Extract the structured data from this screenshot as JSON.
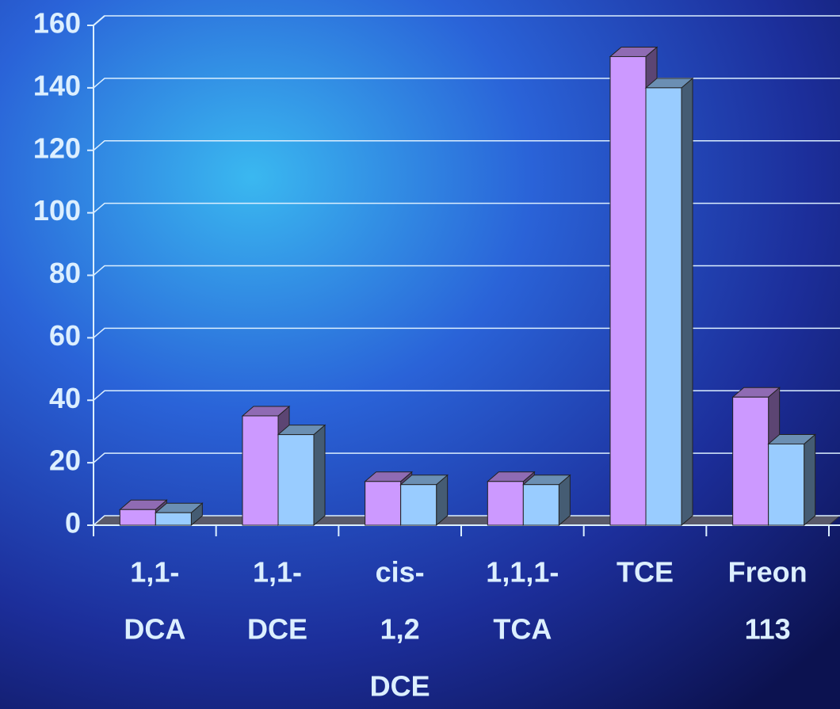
{
  "chart_data": {
    "type": "bar3d",
    "categories": [
      [
        "1,1-",
        "DCA"
      ],
      [
        "1,1-",
        "DCE"
      ],
      [
        "cis-",
        "1,2",
        "DCE"
      ],
      [
        "1,1,1-",
        "TCA"
      ],
      [
        "TCE"
      ],
      [
        "Freon",
        "113"
      ]
    ],
    "series": [
      {
        "color": "#cc99ff",
        "values": [
          5,
          35,
          14,
          14,
          150,
          41
        ]
      },
      {
        "color": "#99ccff",
        "values": [
          4,
          29,
          13,
          13,
          140,
          26
        ]
      }
    ],
    "ylim": [
      0,
      160
    ],
    "yticks": [
      0,
      20,
      40,
      60,
      80,
      100,
      120,
      140,
      160
    ],
    "grid": true
  }
}
